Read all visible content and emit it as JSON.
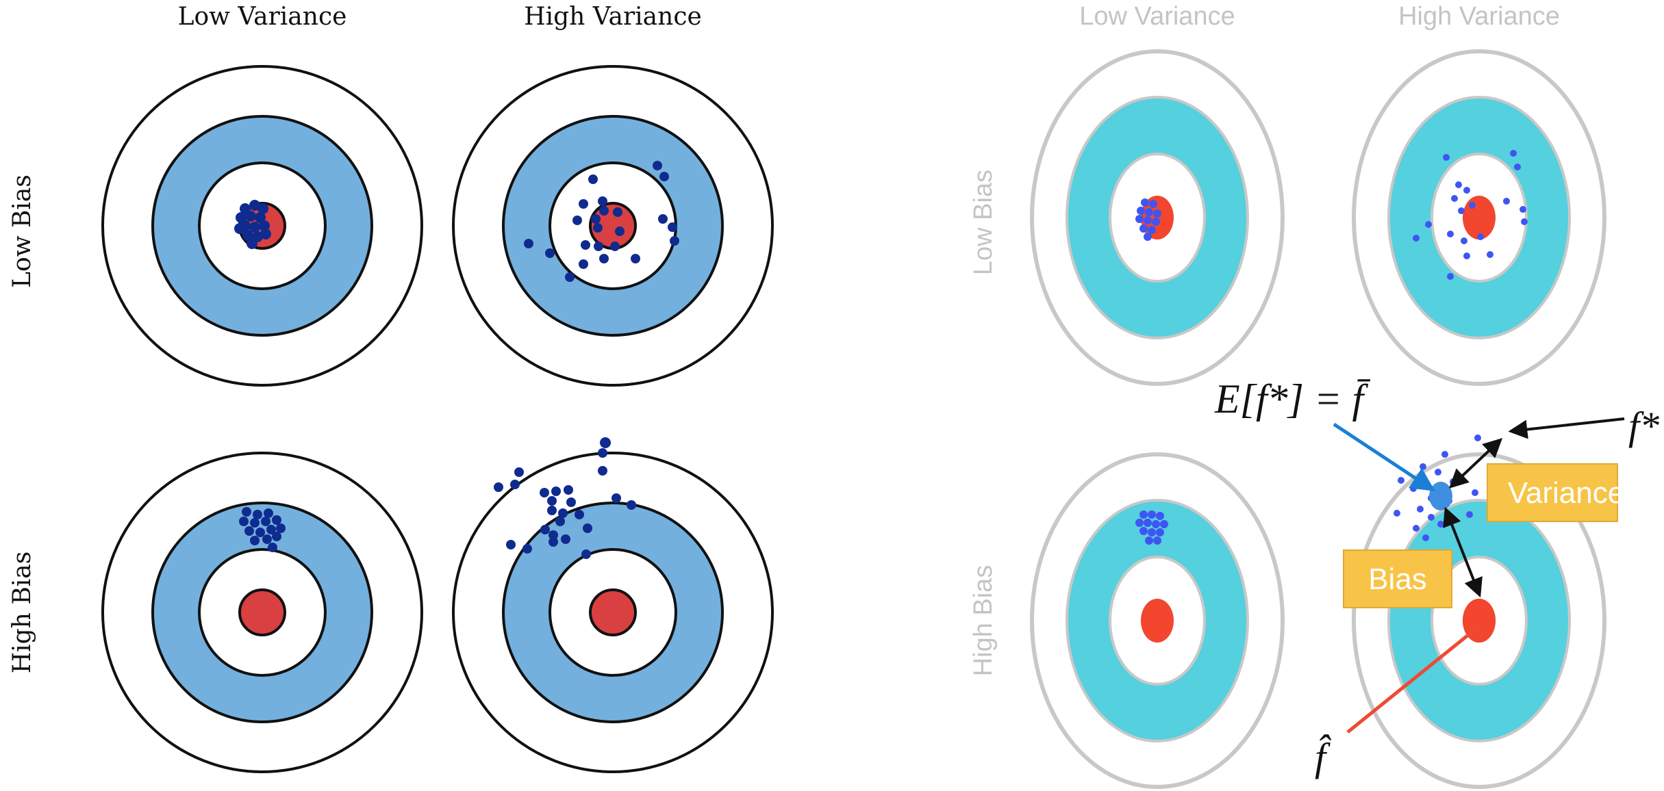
{
  "left_panel": {
    "col_labels": [
      "Low Variance",
      "High Variance"
    ],
    "row_labels": [
      "Low Bias",
      "High Bias"
    ],
    "colors": {
      "ring_fill": "#73b0dd",
      "bullseye": "#d94041",
      "dot": "#102b8f",
      "stroke": "#111111"
    }
  },
  "right_panel": {
    "col_labels": [
      "Low Variance",
      "High Variance"
    ],
    "row_labels": [
      "Low Bias",
      "High Bias"
    ],
    "colors": {
      "ring_fill": "#54d0de",
      "bullseye": "#f2462f",
      "dot": "#3f55f2",
      "stroke": "#bdbdbd",
      "label_fill": "#f8c448"
    },
    "annotations": {
      "expected_label": "E[f*] = f̄",
      "f_star_label": "f*",
      "f_hat_label": "f̂",
      "variance_label": "Variance",
      "bias_label": "Bias"
    }
  }
}
